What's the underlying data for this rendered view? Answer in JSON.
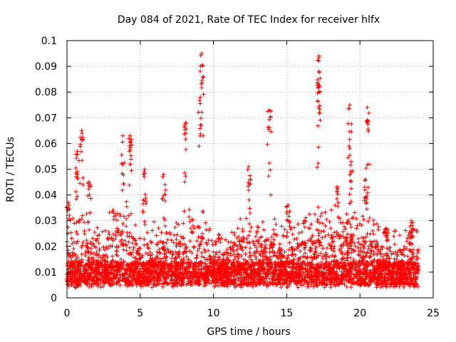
{
  "chart_data": {
    "type": "scatter",
    "title": "Day 084 of 2021, Rate Of TEC Index for receiver hlfx",
    "xlabel": "GPS time / hours",
    "ylabel": "ROTI / TECUs",
    "xlim": [
      0,
      25
    ],
    "ylim": [
      0,
      0.1
    ],
    "xticks": [
      0,
      5,
      10,
      15,
      20,
      25
    ],
    "xtick_labels": [
      "0",
      "5",
      "10",
      "15",
      "20",
      "25"
    ],
    "yticks": [
      0,
      0.01,
      0.02,
      0.03,
      0.04,
      0.05,
      0.06,
      0.07,
      0.08,
      0.09,
      0.1
    ],
    "ytick_labels": [
      "0",
      "0.01",
      "0.02",
      "0.03",
      "0.04",
      "0.05",
      "0.06",
      "0.07",
      "0.08",
      "0.09",
      "0.1"
    ],
    "grid": true,
    "marker": "+",
    "color": "#ff0000",
    "data_xrange": [
      0,
      24
    ],
    "notable_spikes": [
      {
        "x": 0.1,
        "y": 0.037
      },
      {
        "x": 0.7,
        "y": 0.057
      },
      {
        "x": 1.0,
        "y": 0.065
      },
      {
        "x": 1.5,
        "y": 0.045
      },
      {
        "x": 3.8,
        "y": 0.063
      },
      {
        "x": 4.3,
        "y": 0.063
      },
      {
        "x": 5.3,
        "y": 0.05
      },
      {
        "x": 6.6,
        "y": 0.048
      },
      {
        "x": 8.1,
        "y": 0.068
      },
      {
        "x": 9.2,
        "y": 0.095
      },
      {
        "x": 9.1,
        "y": 0.078
      },
      {
        "x": 12.4,
        "y": 0.051
      },
      {
        "x": 13.8,
        "y": 0.073
      },
      {
        "x": 15.1,
        "y": 0.036
      },
      {
        "x": 17.2,
        "y": 0.094
      },
      {
        "x": 17.2,
        "y": 0.088
      },
      {
        "x": 18.4,
        "y": 0.043
      },
      {
        "x": 19.3,
        "y": 0.075
      },
      {
        "x": 19.4,
        "y": 0.053
      },
      {
        "x": 20.5,
        "y": 0.074
      },
      {
        "x": 20.4,
        "y": 0.046
      },
      {
        "x": 21.8,
        "y": 0.027
      },
      {
        "x": 23.5,
        "y": 0.03
      }
    ],
    "activity_profile": [
      {
        "x": 0,
        "y": 0.022
      },
      {
        "x": 1,
        "y": 0.03
      },
      {
        "x": 2,
        "y": 0.022
      },
      {
        "x": 3,
        "y": 0.028
      },
      {
        "x": 4,
        "y": 0.032
      },
      {
        "x": 5,
        "y": 0.022
      },
      {
        "x": 6,
        "y": 0.024
      },
      {
        "x": 7,
        "y": 0.02
      },
      {
        "x": 8,
        "y": 0.028
      },
      {
        "x": 9,
        "y": 0.032
      },
      {
        "x": 10,
        "y": 0.018
      },
      {
        "x": 11,
        "y": 0.02
      },
      {
        "x": 12,
        "y": 0.026
      },
      {
        "x": 13,
        "y": 0.024
      },
      {
        "x": 14,
        "y": 0.026
      },
      {
        "x": 15,
        "y": 0.02
      },
      {
        "x": 16,
        "y": 0.024
      },
      {
        "x": 17,
        "y": 0.03
      },
      {
        "x": 18,
        "y": 0.03
      },
      {
        "x": 19,
        "y": 0.028
      },
      {
        "x": 20,
        "y": 0.028
      },
      {
        "x": 21,
        "y": 0.024
      },
      {
        "x": 22,
        "y": 0.02
      },
      {
        "x": 23,
        "y": 0.02
      },
      {
        "x": 24,
        "y": 0.022
      }
    ]
  }
}
